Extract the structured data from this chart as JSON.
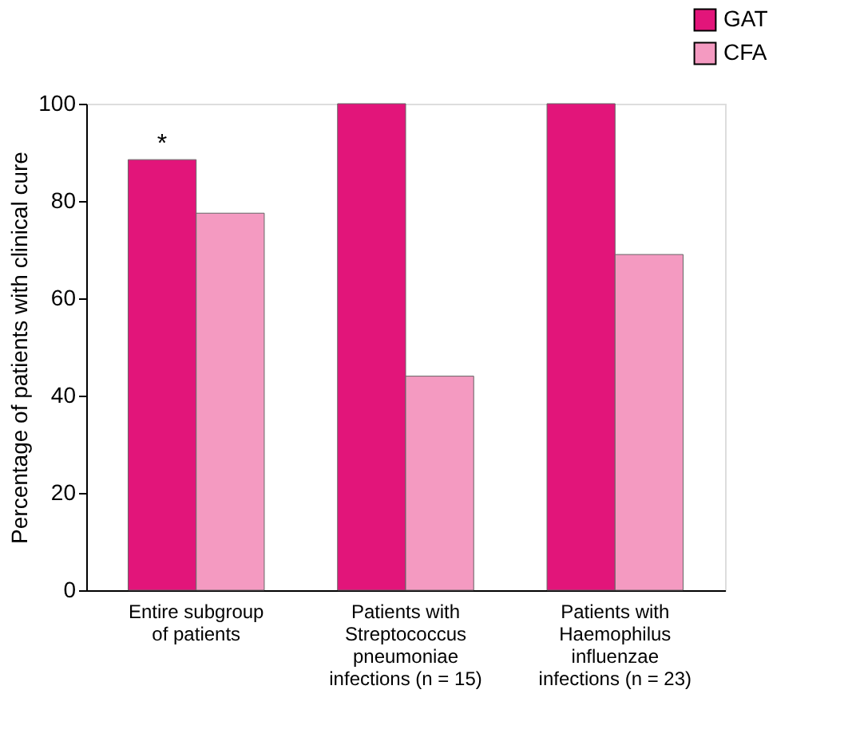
{
  "chart_data": {
    "type": "bar",
    "ylabel": "Percentage of patients with clinical cure",
    "categories": [
      "Entire subgroup\nof patients",
      "Patients with\nStreptococcus\npneumoniae\ninfections (n = 15)",
      "Patients with\nHaemophilus\ninfluenzae\ninfections (n = 23)"
    ],
    "series": [
      {
        "name": "GAT",
        "color": "#e2157a",
        "values": [
          88.5,
          100,
          100
        ]
      },
      {
        "name": "CFA",
        "color": "#f49ac1",
        "values": [
          77.5,
          44,
          69
        ]
      }
    ],
    "ylim": [
      0,
      100
    ],
    "yticks": [
      0,
      20,
      40,
      60,
      80,
      100
    ],
    "grid": false,
    "legend": "top right",
    "annotations": [
      {
        "text": "*",
        "x": "Entire subgroup\nof patients",
        "y": 88.5
      }
    ]
  }
}
